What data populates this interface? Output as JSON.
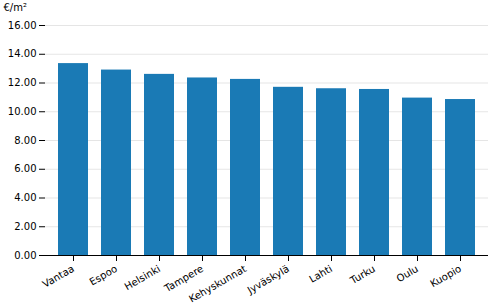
{
  "chart_data": {
    "type": "bar",
    "categories": [
      "Vantaa",
      "Espoo",
      "Helsinki",
      "Tampere",
      "Kehyskunnat",
      "Jyväskylä",
      "Lahti",
      "Turku",
      "Oulu",
      "Kuopio"
    ],
    "values": [
      13.35,
      12.9,
      12.6,
      12.35,
      12.25,
      11.7,
      11.6,
      11.55,
      10.95,
      10.85
    ],
    "color": "#1a7ab5",
    "ylabel": "€/m²",
    "ylim": [
      0,
      16.0
    ],
    "yticks": [
      {
        "value": 0.0,
        "label": "0.00"
      },
      {
        "value": 2.0,
        "label": "2.00"
      },
      {
        "value": 4.0,
        "label": "4.00"
      },
      {
        "value": 6.0,
        "label": "6.00"
      },
      {
        "value": 8.0,
        "label": "8.00"
      },
      {
        "value": 10.0,
        "label": "10.00"
      },
      {
        "value": 12.0,
        "label": "12.00"
      },
      {
        "value": 14.0,
        "label": "14.00"
      },
      {
        "value": 16.0,
        "label": "16.00"
      }
    ],
    "grid": true
  }
}
